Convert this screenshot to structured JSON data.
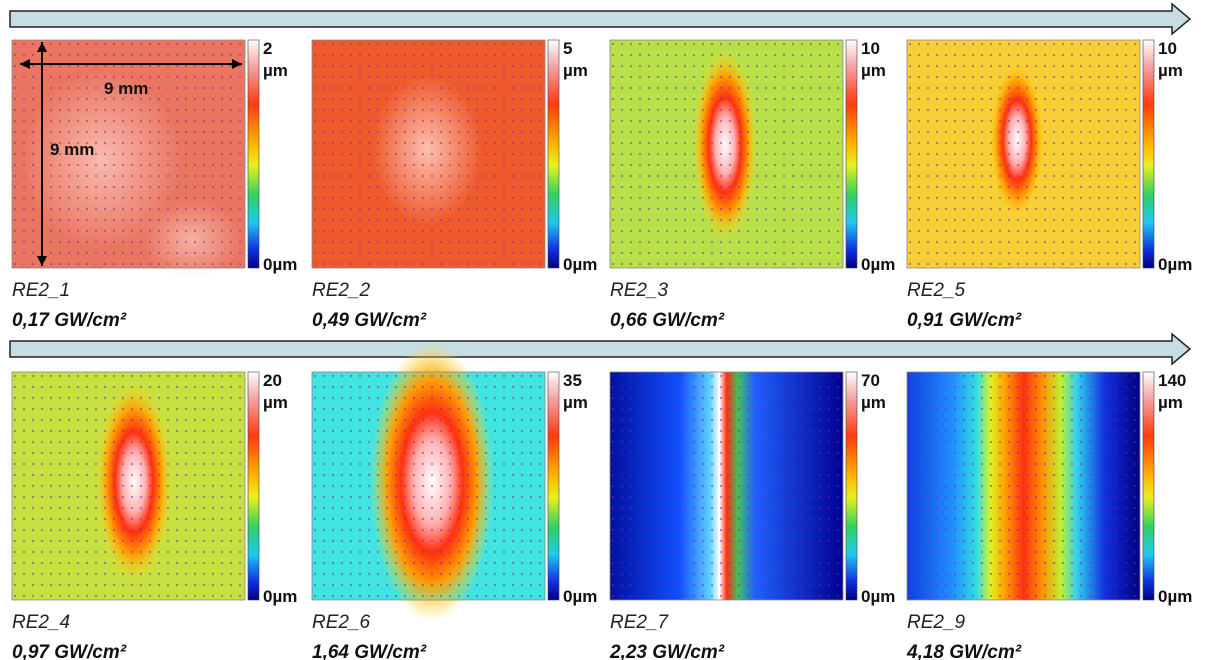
{
  "annotations": {
    "width": "9 mm",
    "height": "9 mm"
  },
  "panels": [
    {
      "name": "RE2_1",
      "fluence": "0,17 GW/cm²",
      "scale_max": "2",
      "unit": "µm",
      "scale_min": "0µm"
    },
    {
      "name": "RE2_2",
      "fluence": "0,49 GW/cm²",
      "scale_max": "5",
      "unit": "µm",
      "scale_min": "0µm"
    },
    {
      "name": "RE2_3",
      "fluence": "0,66 GW/cm²",
      "scale_max": "10",
      "unit": "µm",
      "scale_min": "0µm"
    },
    {
      "name": "RE2_5",
      "fluence": "0,91 GW/cm²",
      "scale_max": "10",
      "unit": "µm",
      "scale_min": "0µm"
    },
    {
      "name": "RE2_4",
      "fluence": "0,97 GW/cm²",
      "scale_max": "20",
      "unit": "µm",
      "scale_min": "0µm"
    },
    {
      "name": "RE2_6",
      "fluence": "1,64 GW/cm²",
      "scale_max": "35",
      "unit": "µm",
      "scale_min": "0µm"
    },
    {
      "name": "RE2_7",
      "fluence": "2,23 GW/cm²",
      "scale_max": "70",
      "unit": "µm",
      "scale_min": "0µm"
    },
    {
      "name": "RE2_9",
      "fluence": "4,18 GW/cm²",
      "scale_max": "140",
      "unit": "µm",
      "scale_min": "0µm"
    }
  ]
}
